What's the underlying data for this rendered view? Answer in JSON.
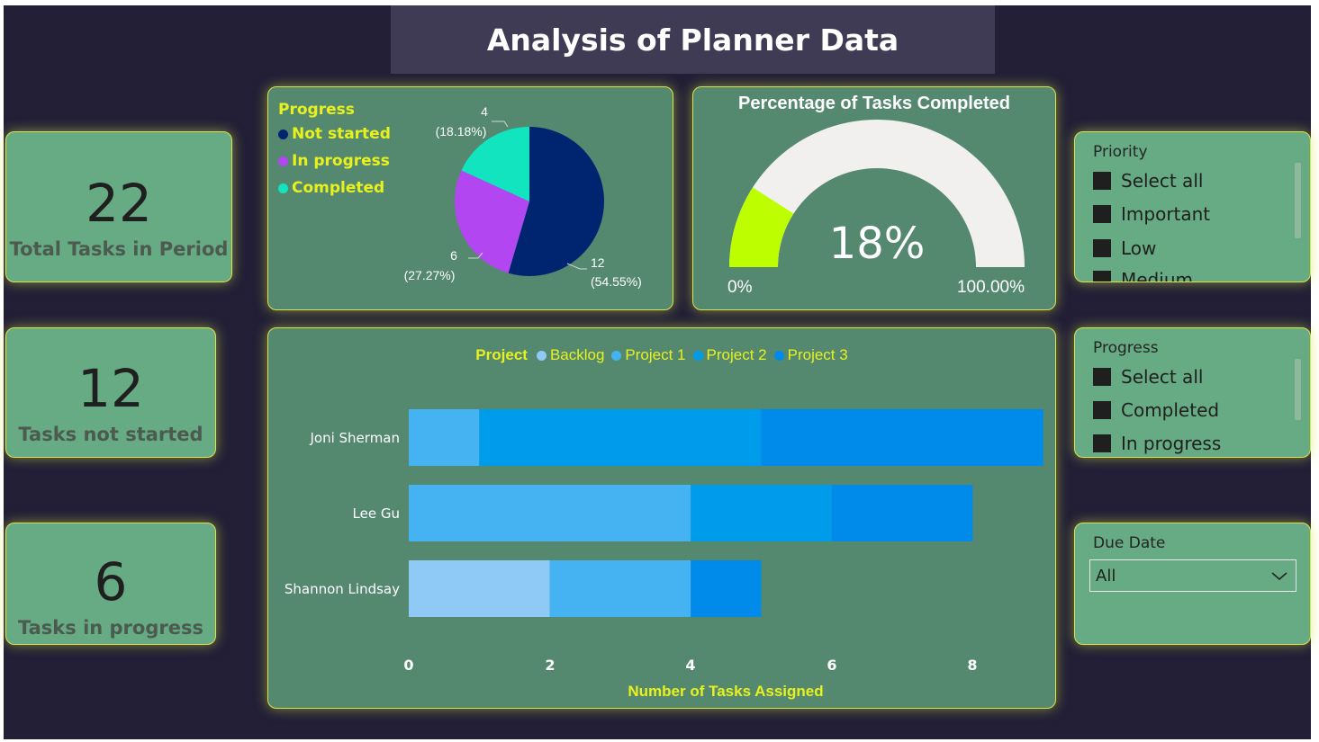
{
  "title": "Analysis of Planner Data",
  "kpis": [
    {
      "value": "22",
      "label": "Total Tasks in Period"
    },
    {
      "value": "12",
      "label": "Tasks not started"
    },
    {
      "value": "6",
      "label": "Tasks in progress"
    }
  ],
  "pie": {
    "legend_title": "Progress",
    "legend": [
      {
        "label": "Not started",
        "color": "#002570"
      },
      {
        "label": "In progress",
        "color": "#b246f1"
      },
      {
        "label": "Completed",
        "color": "#12e4c0"
      }
    ],
    "labels": {
      "completed_count": "4",
      "completed_pct": "(18.18%)",
      "inprogress_count": "6",
      "inprogress_pct": "(27.27%)",
      "notstarted_count": "12",
      "notstarted_pct": "(54.55%)"
    }
  },
  "gauge": {
    "title": "Percentage of Tasks Completed",
    "value_label": "18%",
    "min_label": "0%",
    "max_label": "100.00%",
    "fraction": 0.1818,
    "fill_color": "#bdff00",
    "track_color": "#f2f0ee"
  },
  "slicers": {
    "priority": {
      "title": "Priority",
      "items": [
        "Select all",
        "Important",
        "Low",
        "Medium"
      ]
    },
    "progress": {
      "title": "Progress",
      "items": [
        "Select all",
        "Completed",
        "In progress"
      ]
    },
    "due_date": {
      "title": "Due Date",
      "value": "All"
    }
  },
  "chart_data": [
    {
      "type": "pie",
      "title": "",
      "legend_title": "Progress",
      "categories": [
        "Not started",
        "In progress",
        "Completed"
      ],
      "values": [
        12,
        6,
        4
      ],
      "percentages": [
        54.55,
        27.27,
        18.18
      ],
      "legend_position": "left"
    },
    {
      "type": "bar",
      "orientation": "horizontal",
      "stacked": true,
      "legend_title": "Project",
      "legend_position": "top",
      "categories": [
        "Joni Sherman",
        "Lee Gu",
        "Shannon Lindsay"
      ],
      "series": [
        {
          "name": "Backlog",
          "color": "#8fc9f5",
          "values": [
            0,
            0,
            2
          ]
        },
        {
          "name": "Project 1",
          "color": "#45b3f1",
          "values": [
            1,
            4,
            2
          ]
        },
        {
          "name": "Project 2",
          "color": "#009cec",
          "values": [
            4,
            2,
            0
          ]
        },
        {
          "name": "Project 3",
          "color": "#008aea",
          "values": [
            4,
            2,
            1
          ]
        }
      ],
      "xlabel": "Number of Tasks Assigned",
      "ylabel": "",
      "xlim": [
        0,
        9
      ],
      "xticks": [
        "0",
        "2",
        "4",
        "6",
        "8"
      ]
    }
  ]
}
